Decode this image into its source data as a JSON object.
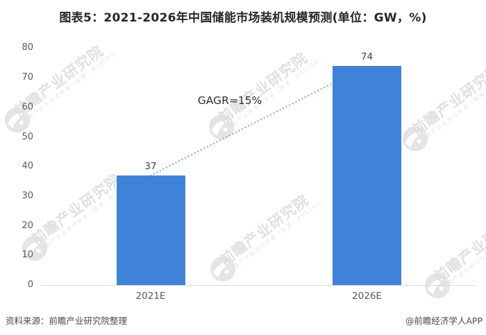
{
  "title": "图表5：2021-2026年中国储能市场装机规模预测(单位：GW，%)",
  "chart_data": {
    "type": "bar",
    "title": "图表5：2021-2026年中国储能市场装机规模预测",
    "unit_note": "(单位：GW，%)",
    "categories": [
      "2021E",
      "2026E"
    ],
    "values": [
      37,
      74
    ],
    "value_labels": [
      "37",
      "74"
    ],
    "annotation": "GAGR=15%",
    "ylim": [
      0,
      80
    ],
    "yticks": [
      0,
      10,
      20,
      30,
      40,
      50,
      60,
      70,
      80
    ],
    "grid": false,
    "legend": "none",
    "bar_color": "#3F82DA",
    "axis_line_color": "#D9D9D9",
    "trendline": {
      "style": "dotted",
      "color": "#8EA9DC",
      "from_category": "2021E",
      "to_category": "2026E"
    }
  },
  "footer": {
    "source": "资料来源：前瞻产业研究院整理",
    "credit": "@前瞻经济学人APP"
  },
  "watermark": {
    "logo_icon": "qianzhan-swoosh-logo-icon",
    "brand": "前瞻产业研究院",
    "tagline": "中国产业咨询领导者（股票：839599）",
    "color": "#E2E2E2"
  }
}
